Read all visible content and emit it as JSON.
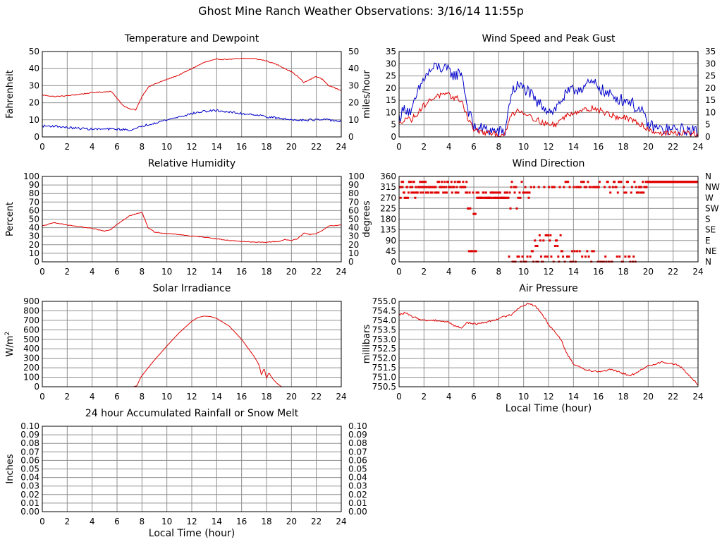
{
  "page": {
    "title": "Ghost Mine Ranch Weather Observations: 3/16/14 11:55p"
  },
  "colors": {
    "red": "#e00000",
    "blue": "#0000cc",
    "grid": "#909090",
    "frame": "#000000"
  },
  "chart_data": [
    {
      "id": "temperature",
      "type": "line",
      "title": "Temperature and Dewpoint",
      "xlabel": "",
      "ylabel": "Fahrenheit",
      "xlim": [
        0,
        24
      ],
      "ylim": [
        0,
        55
      ],
      "xticks": [
        "0",
        "2",
        "4",
        "6",
        "8",
        "10",
        "12",
        "14",
        "16",
        "18",
        "20",
        "22",
        "24"
      ],
      "yticks": [
        "0",
        "10",
        "20",
        "30",
        "40",
        "50"
      ],
      "right_ticks": [
        "0",
        "10",
        "20",
        "30",
        "40",
        "50"
      ],
      "series": [
        {
          "color": "red",
          "noise": 0.3,
          "x": [
            0,
            1,
            2,
            3,
            4,
            5,
            5.5,
            6,
            6.5,
            7,
            7.5,
            8,
            8.5,
            9,
            10,
            11,
            12,
            13,
            14,
            15,
            16,
            17,
            18,
            19,
            20,
            20.5,
            21,
            21.5,
            22,
            22.5,
            23,
            24
          ],
          "y": [
            27,
            26,
            26.5,
            27.5,
            28.5,
            29,
            29.5,
            25,
            20,
            18,
            17.5,
            26,
            32,
            34,
            37,
            40,
            44,
            48,
            50,
            50,
            50.5,
            50.5,
            49,
            46,
            42,
            39,
            35,
            37,
            39,
            37,
            33,
            30
          ]
        },
        {
          "color": "blue",
          "noise": 0.7,
          "x": [
            0,
            1,
            2,
            3,
            4,
            5,
            6,
            7,
            7.5,
            8,
            9,
            10,
            11,
            12,
            13,
            14,
            15,
            16,
            17,
            18,
            19,
            20,
            21,
            22,
            23,
            24
          ],
          "y": [
            7,
            7,
            6,
            5.5,
            5,
            5,
            5,
            4.5,
            5,
            7,
            9,
            11,
            13,
            15,
            16.5,
            17,
            16,
            15,
            14.5,
            13,
            12,
            11,
            11,
            11,
            11,
            10
          ]
        }
      ]
    },
    {
      "id": "wind-speed",
      "type": "line",
      "title": "Wind Speed and Peak Gust",
      "xlabel": "",
      "ylabel": "miles/hour",
      "xlim": [
        0,
        24
      ],
      "ylim": [
        0,
        35
      ],
      "xticks": [
        "0",
        "2",
        "4",
        "6",
        "8",
        "10",
        "12",
        "14",
        "16",
        "18",
        "20",
        "22",
        "24"
      ],
      "yticks": [
        "0",
        "5",
        "10",
        "15",
        "20",
        "25",
        "30",
        "35"
      ],
      "right_ticks": [
        "0",
        "5",
        "10",
        "15",
        "20",
        "25",
        "30",
        "35"
      ],
      "series": [
        {
          "color": "blue",
          "noise": 2.5,
          "x": [
            0,
            0.5,
            1,
            1.5,
            2,
            2.5,
            3,
            3.5,
            4,
            4.5,
            5,
            5.5,
            6,
            7,
            8,
            8.5,
            9,
            9.5,
            10,
            10.5,
            11,
            11.5,
            12,
            12.5,
            13,
            13.5,
            14,
            14.5,
            15,
            15.5,
            16,
            16.5,
            17,
            17.5,
            18,
            18.5,
            19,
            19.5,
            20,
            21,
            22,
            23,
            24
          ],
          "y": [
            8,
            12,
            10,
            18,
            24,
            27,
            29,
            28,
            27,
            25,
            27,
            12,
            4,
            3,
            2,
            2,
            18,
            21,
            20,
            18,
            14,
            13,
            11,
            11,
            15,
            18,
            19,
            20,
            21,
            22,
            21,
            18,
            17,
            16,
            15,
            15,
            12,
            10,
            5,
            3,
            3,
            3,
            2
          ]
        },
        {
          "color": "red",
          "noise": 1.2,
          "x": [
            0,
            0.5,
            1,
            1.5,
            2,
            2.5,
            3,
            3.5,
            4,
            4.5,
            5,
            5.5,
            6,
            7,
            8,
            8.5,
            9,
            9.5,
            10,
            10.5,
            11,
            11.5,
            12,
            12.5,
            13,
            13.5,
            14,
            14.5,
            15,
            15.5,
            16,
            16.5,
            17,
            17.5,
            18,
            18.5,
            19,
            19.5,
            20,
            21,
            22,
            23,
            24
          ],
          "y": [
            5,
            8,
            7,
            10,
            13,
            15,
            17,
            17,
            17,
            16,
            15,
            8,
            3,
            1.5,
            1,
            1,
            9,
            11,
            10,
            9,
            7,
            6,
            5,
            5,
            7,
            9,
            10,
            11,
            11,
            12,
            11,
            10,
            9,
            8,
            8,
            7,
            6,
            5,
            3,
            1.5,
            1.5,
            1.5,
            1
          ]
        }
      ]
    },
    {
      "id": "humidity",
      "type": "line",
      "title": "Relative Humidity",
      "xlabel": "",
      "ylabel": "Percent",
      "xlim": [
        0,
        24
      ],
      "ylim": [
        0,
        100
      ],
      "xticks": [
        "0",
        "2",
        "4",
        "6",
        "8",
        "10",
        "12",
        "14",
        "16",
        "18",
        "20",
        "22",
        "24"
      ],
      "yticks": [
        "0",
        "10",
        "20",
        "30",
        "40",
        "50",
        "60",
        "70",
        "80",
        "90",
        "100"
      ],
      "right_ticks": [
        "0",
        "10",
        "20",
        "30",
        "40",
        "50",
        "60",
        "70",
        "80",
        "90",
        "100"
      ],
      "series": [
        {
          "color": "red",
          "noise": 0.4,
          "x": [
            0,
            0.5,
            1,
            2,
            3,
            4,
            5,
            5.5,
            6,
            6.5,
            7,
            7.5,
            8,
            8.5,
            9,
            10,
            11,
            12,
            13,
            14,
            15,
            16,
            17,
            18,
            19,
            19.5,
            20,
            20.5,
            21,
            21.5,
            22,
            22.5,
            23,
            24
          ],
          "y": [
            42,
            44,
            46,
            43,
            41,
            39,
            36,
            38,
            44,
            49,
            54,
            56,
            58,
            40,
            35,
            33,
            32,
            30,
            29,
            27,
            25,
            24,
            23,
            23,
            24,
            26,
            25,
            27,
            34,
            32,
            33,
            37,
            42,
            43
          ]
        }
      ]
    },
    {
      "id": "wind-direction",
      "type": "scatter",
      "title": "Wind Direction",
      "xlabel": "",
      "ylabel": "degrees",
      "xlim": [
        0,
        24
      ],
      "ylim": [
        0,
        360
      ],
      "xticks": [
        "0",
        "2",
        "4",
        "6",
        "8",
        "10",
        "12",
        "14",
        "16",
        "18",
        "20",
        "22",
        "24"
      ],
      "yticks": [
        "0",
        "45",
        "90",
        "135",
        "180",
        "225",
        "270",
        "315",
        "360"
      ],
      "right_ticks": [
        "N",
        "NE",
        "E",
        "SE",
        "S",
        "SW",
        "W",
        "NW",
        "N"
      ],
      "clusters": [
        {
          "x0": 0,
          "x1": 2.2,
          "degrees": [
            315,
            337,
            292,
            270
          ],
          "count": 45
        },
        {
          "x0": 2.2,
          "x1": 5.5,
          "degrees": [
            315,
            315,
            337,
            292
          ],
          "count": 60
        },
        {
          "x0": 5.5,
          "x1": 6.2,
          "degrees": [
            225,
            292,
            45,
            202
          ],
          "count": 15
        },
        {
          "x0": 6.2,
          "x1": 8.8,
          "degrees": [
            270,
            270,
            270,
            292
          ],
          "count": 55
        },
        {
          "x0": 8.8,
          "x1": 10.5,
          "degrees": [
            270,
            315,
            337,
            225,
            22,
            0,
            292
          ],
          "count": 30
        },
        {
          "x0": 10.5,
          "x1": 13,
          "degrees": [
            67,
            90,
            45,
            22,
            315,
            0,
            112
          ],
          "count": 40
        },
        {
          "x0": 13,
          "x1": 16,
          "degrees": [
            315,
            315,
            0,
            22,
            45,
            337
          ],
          "count": 45
        },
        {
          "x0": 16,
          "x1": 19,
          "degrees": [
            0,
            0,
            315,
            292,
            22,
            337
          ],
          "count": 45
        },
        {
          "x0": 19,
          "x1": 19.9,
          "degrees": [
            315,
            315,
            337,
            292
          ],
          "count": 15
        },
        {
          "x0": 19.9,
          "x1": 24,
          "degrees": [
            337
          ],
          "count": 80
        }
      ]
    },
    {
      "id": "solar",
      "type": "area",
      "title": "Solar Irradiance",
      "xlabel": "",
      "ylabel": "W/m",
      "ylabel_sup": "2",
      "xlim": [
        0,
        24
      ],
      "ylim": [
        0,
        900
      ],
      "xticks": [
        "0",
        "2",
        "4",
        "6",
        "8",
        "10",
        "12",
        "14",
        "16",
        "18",
        "20",
        "22",
        "24"
      ],
      "yticks": [
        "0",
        "100",
        "200",
        "300",
        "400",
        "500",
        "600",
        "700",
        "800",
        "900"
      ],
      "right_ticks": [],
      "series": [
        {
          "color": "red",
          "noise": 0,
          "x": [
            0,
            7.3,
            7.6,
            7.9,
            8.5,
            9,
            10,
            11,
            12,
            12.5,
            13,
            13.5,
            14,
            15,
            16,
            17,
            17.4,
            17.6,
            17.8,
            18,
            18.2,
            18.4,
            18.8,
            19.2,
            24
          ],
          "y": [
            0,
            0,
            10,
            100,
            200,
            280,
            430,
            570,
            690,
            730,
            745,
            740,
            720,
            640,
            500,
            320,
            230,
            120,
            200,
            90,
            150,
            100,
            40,
            0,
            0
          ]
        }
      ]
    },
    {
      "id": "pressure",
      "type": "line",
      "title": "Air Pressure",
      "xlabel": "Local Time (hour)",
      "ylabel": "millibars",
      "xlim": [
        0,
        24
      ],
      "ylim": [
        750.5,
        755.0
      ],
      "xticks": [
        "0",
        "2",
        "4",
        "6",
        "8",
        "10",
        "12",
        "14",
        "16",
        "18",
        "20",
        "22",
        "24"
      ],
      "yticks": [
        "750.5",
        "751.0",
        "751.5",
        "752.0",
        "752.5",
        "753.0",
        "753.5",
        "754.0",
        "754.5",
        "755.0"
      ],
      "right_ticks": [],
      "series": [
        {
          "color": "red",
          "noise": 0.05,
          "x": [
            0,
            0.5,
            1,
            2,
            3,
            4,
            4.5,
            5,
            5.5,
            6,
            7,
            8,
            9,
            9.5,
            10,
            10.5,
            11,
            11.5,
            12,
            13,
            13.5,
            14,
            15,
            16,
            17,
            18,
            18.5,
            19,
            19.5,
            20,
            20.5,
            21,
            22,
            22.5,
            23,
            24
          ],
          "y": [
            754.3,
            754.4,
            754.2,
            754.0,
            754.0,
            753.9,
            753.7,
            753.6,
            753.9,
            753.8,
            753.9,
            754.1,
            754.3,
            754.6,
            754.8,
            754.9,
            754.7,
            754.3,
            753.8,
            753.0,
            752.2,
            751.7,
            751.4,
            751.3,
            751.4,
            751.2,
            751.1,
            751.2,
            751.4,
            751.6,
            751.7,
            751.8,
            751.7,
            751.6,
            751.3,
            750.6
          ]
        }
      ]
    },
    {
      "id": "rainfall",
      "type": "line",
      "title": "24 hour Accumulated Rainfall or Snow Melt",
      "xlabel": "Local Time (hour)",
      "ylabel": "Inches",
      "xlim": [
        0,
        24
      ],
      "ylim": [
        0,
        0.1
      ],
      "xticks": [
        "0",
        "2",
        "4",
        "6",
        "8",
        "10",
        "12",
        "14",
        "16",
        "18",
        "20",
        "22",
        "24"
      ],
      "yticks": [
        "0.00",
        "0.01",
        "0.02",
        "0.03",
        "0.04",
        "0.05",
        "0.06",
        "0.07",
        "0.08",
        "0.09",
        "0.10"
      ],
      "right_ticks": [
        "0.00",
        "0.01",
        "0.02",
        "0.03",
        "0.04",
        "0.05",
        "0.06",
        "0.07",
        "0.08",
        "0.09",
        "0.10"
      ],
      "series": [
        {
          "color": "red",
          "noise": 0,
          "x": [
            0,
            24
          ],
          "y": [
            0,
            0
          ]
        }
      ]
    }
  ]
}
